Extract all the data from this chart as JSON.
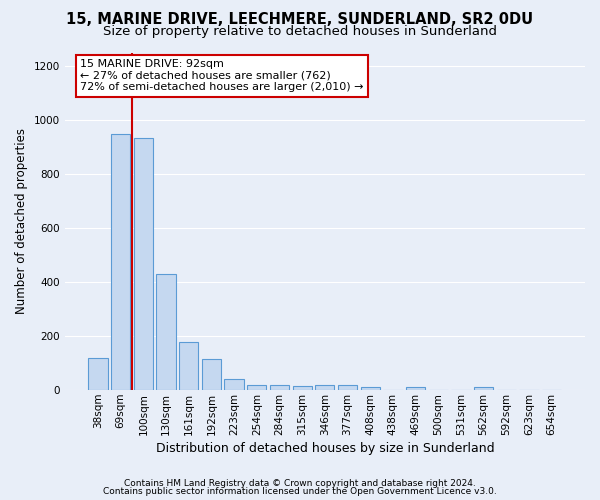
{
  "title1": "15, MARINE DRIVE, LEECHMERE, SUNDERLAND, SR2 0DU",
  "title2": "Size of property relative to detached houses in Sunderland",
  "xlabel": "Distribution of detached houses by size in Sunderland",
  "ylabel": "Number of detached properties",
  "categories": [
    "38sqm",
    "69sqm",
    "100sqm",
    "130sqm",
    "161sqm",
    "192sqm",
    "223sqm",
    "254sqm",
    "284sqm",
    "315sqm",
    "346sqm",
    "377sqm",
    "408sqm",
    "438sqm",
    "469sqm",
    "500sqm",
    "531sqm",
    "562sqm",
    "592sqm",
    "623sqm",
    "654sqm"
  ],
  "values": [
    120,
    950,
    935,
    430,
    180,
    115,
    43,
    20,
    20,
    15,
    20,
    20,
    10,
    0,
    10,
    0,
    0,
    10,
    0,
    0,
    0
  ],
  "bar_color": "#c5d8f0",
  "bar_edge_color": "#5b9bd5",
  "property_line_color": "#cc0000",
  "property_line_xindex": 1,
  "annotation_text": "15 MARINE DRIVE: 92sqm\n← 27% of detached houses are smaller (762)\n72% of semi-detached houses are larger (2,010) →",
  "annotation_box_facecolor": "#ffffff",
  "annotation_box_edgecolor": "#cc0000",
  "ylim": [
    0,
    1250
  ],
  "yticks": [
    0,
    200,
    400,
    600,
    800,
    1000,
    1200
  ],
  "footer1": "Contains HM Land Registry data © Crown copyright and database right 2024.",
  "footer2": "Contains public sector information licensed under the Open Government Licence v3.0.",
  "bg_color": "#e8eef8",
  "plot_bg_color": "#e8eef8",
  "title1_fontsize": 10.5,
  "title2_fontsize": 9.5,
  "xlabel_fontsize": 9,
  "ylabel_fontsize": 8.5,
  "tick_fontsize": 7.5,
  "footer_fontsize": 6.5,
  "annotation_fontsize": 8,
  "grid_color": "#ffffff"
}
